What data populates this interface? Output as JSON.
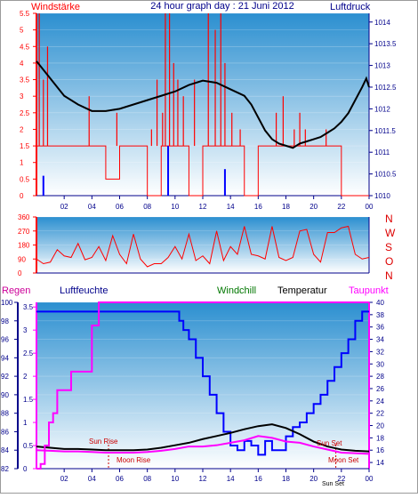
{
  "colors": {
    "red": "#ff0000",
    "navy": "#00008b",
    "blue": "#0000ff",
    "magenta": "#ff00ff",
    "black": "#000000",
    "green": "#007700",
    "dirLetters": "#dd0000",
    "regen": "#cc0099",
    "bgTop": "#2b8fd0",
    "bgBottom": "#ffffff"
  },
  "chart_data": [
    {
      "type": "line",
      "panel": "wind_pressure",
      "title": "24 hour graph day : 21 Juni 2012",
      "left_label": "Windstärke",
      "right_label": "Luftdruck",
      "x_ticks": [
        "02",
        "04",
        "06",
        "08",
        "10",
        "12",
        "14",
        "16",
        "18",
        "20",
        "22",
        "00"
      ],
      "y_left_ticks": [
        "0",
        "0.5",
        "1",
        "1.5",
        "2",
        "2.5",
        "3",
        "3.5",
        "4",
        "4.5",
        "5",
        "5.5"
      ],
      "y_left_range": [
        0,
        5.5
      ],
      "y_right_ticks": [
        "1010",
        "1010.5",
        "1011",
        "1011.5",
        "1012",
        "1012.5",
        "1013",
        "1013.5",
        "1014"
      ],
      "y_right_range": [
        1010,
        1014.2
      ],
      "series": [
        {
          "key": "pressure",
          "color": "black",
          "x": [
            0,
            0.5,
            1,
            1.5,
            2,
            3,
            4,
            4.5,
            5,
            6,
            7,
            8,
            9,
            10,
            11,
            12,
            13,
            14,
            15,
            15.5,
            16,
            16.5,
            17,
            17.5,
            18,
            18.5,
            19,
            19.5,
            20,
            20.5,
            21,
            21.5,
            22,
            22.5,
            23,
            23.5,
            23.8,
            24
          ],
          "y": [
            1013.1,
            1012.9,
            1012.7,
            1012.5,
            1012.3,
            1012.1,
            1011.95,
            1011.95,
            1011.95,
            1012.0,
            1012.1,
            1012.2,
            1012.3,
            1012.4,
            1012.55,
            1012.65,
            1012.6,
            1012.45,
            1012.3,
            1012.1,
            1011.8,
            1011.5,
            1011.3,
            1011.2,
            1011.15,
            1011.1,
            1011.2,
            1011.25,
            1011.3,
            1011.35,
            1011.45,
            1011.55,
            1011.7,
            1011.9,
            1012.2,
            1012.5,
            1012.7,
            1012.5
          ]
        },
        {
          "key": "wind_avg",
          "color": "red",
          "x": [
            0,
            2,
            3,
            4,
            5,
            6,
            7,
            8,
            9,
            9.5,
            10,
            11,
            12,
            13,
            14,
            15,
            16,
            17,
            18,
            19,
            20,
            21,
            22,
            23,
            24
          ],
          "y": [
            1.5,
            1.5,
            1.5,
            1.5,
            0.5,
            1.5,
            1.5,
            0,
            1.5,
            1.5,
            1.5,
            0,
            1.5,
            1.5,
            1.5,
            0,
            1.5,
            1.5,
            1.5,
            1.5,
            1.5,
            1.5,
            0,
            0,
            0
          ]
        },
        {
          "key": "wind_gust_spikes",
          "color": "red",
          "x": [
            0.2,
            0.5,
            0.8,
            3.3,
            3.8,
            5.3,
            5.8,
            6.9,
            7.6,
            8.3,
            8.7,
            9.1,
            9.3,
            9.6,
            9.9,
            10.2,
            10.6,
            11.4,
            12.4,
            12.9,
            13.3,
            13.6,
            14.1,
            14.7,
            15.4,
            16.2,
            17.3,
            17.8,
            18.2,
            18.6,
            19.0,
            19.4,
            19.8,
            20.3,
            20.9,
            21.6
          ],
          "y": [
            5.5,
            3.5,
            4.5,
            1.5,
            3.0,
            1.5,
            2.5,
            1.5,
            1.5,
            2.0,
            3.5,
            2.5,
            5.5,
            5.5,
            4.0,
            3.5,
            3.0,
            3.5,
            5.5,
            5.0,
            5.5,
            4.0,
            2.5,
            2.0,
            1.5,
            1.5,
            2.5,
            3.0,
            1.5,
            2.0,
            2.5,
            2.0,
            1.5,
            1.5,
            2.0,
            1.5
          ]
        },
        {
          "key": "wind_blue",
          "color": "blue",
          "x": [
            0.5,
            9.5,
            13.6
          ],
          "y": [
            0.6,
            1.5,
            0.8
          ]
        }
      ]
    },
    {
      "type": "line",
      "panel": "wind_direction",
      "y_ticks": [
        "0",
        "90",
        "180",
        "270",
        "360"
      ],
      "y_range": [
        0,
        360
      ],
      "direction_labels": [
        "N",
        "W",
        "S",
        "O",
        "N"
      ],
      "series": [
        {
          "key": "direction",
          "color": "red",
          "x": [
            0,
            0.5,
            1,
            1.5,
            2,
            2.5,
            3,
            3.5,
            4,
            4.5,
            5,
            5.5,
            6,
            6.5,
            7,
            7.5,
            8,
            8.5,
            9,
            9.5,
            10,
            10.5,
            11,
            11.5,
            12,
            12.5,
            13,
            13.5,
            14,
            14.5,
            15,
            15.5,
            16,
            16.5,
            17,
            17.5,
            18,
            18.5,
            19,
            19.5,
            20,
            20.5,
            21,
            21.5,
            22,
            22.5,
            23,
            23.5,
            24
          ],
          "y": [
            90,
            60,
            70,
            150,
            110,
            100,
            190,
            85,
            100,
            170,
            80,
            240,
            120,
            60,
            250,
            90,
            40,
            60,
            60,
            100,
            170,
            90,
            250,
            80,
            110,
            60,
            270,
            80,
            170,
            120,
            300,
            120,
            110,
            90,
            300,
            100,
            80,
            100,
            270,
            280,
            120,
            70,
            260,
            260,
            290,
            300,
            120,
            90,
            100
          ]
        }
      ]
    },
    {
      "type": "line",
      "panel": "humidity_temperature",
      "labels": {
        "regen": "Regen",
        "luftfeuchte": "Luftfeuchte",
        "windchill": "Windchill",
        "temperatur": "Temperatur",
        "taupunkt": "Taupunkt"
      },
      "annotations": {
        "sun_rise": "Sun Rise",
        "moon_rise": "Moon Rise",
        "sun_set": "Sun Set",
        "moon_set": "Moon Set",
        "sun_set_axis": "Sun Set"
      },
      "y_left_ticks": [
        "82",
        "84",
        "86",
        "88",
        "90",
        "92",
        "94",
        "96",
        "98",
        "100"
      ],
      "y_left_range": [
        82,
        100
      ],
      "y_rain_ticks": [
        "0",
        "0.5",
        "1",
        "1.5",
        "2",
        "2.5",
        "3",
        "3.5"
      ],
      "y_rain_range": [
        0,
        3.6
      ],
      "y_right_ticks": [
        "14",
        "16",
        "18",
        "20",
        "22",
        "24",
        "26",
        "28",
        "30",
        "32",
        "34",
        "36",
        "38",
        "40"
      ],
      "y_right_range": [
        13,
        40
      ],
      "series": [
        {
          "key": "rain",
          "color": "magenta",
          "x": [
            0,
            0.3,
            0.6,
            0.9,
            1.2,
            1.5,
            2,
            2.5,
            3,
            3.5,
            4,
            4.5,
            5,
            6,
            8,
            10,
            12,
            14,
            16,
            18,
            20,
            22,
            24
          ],
          "y": [
            0,
            0.1,
            0.5,
            1.0,
            1.2,
            1.7,
            1.7,
            2.1,
            2.1,
            2.1,
            3.1,
            3.6,
            3.6,
            3.6,
            3.6,
            3.6,
            3.6,
            3.6,
            3.6,
            3.6,
            3.6,
            3.6,
            3.6
          ]
        },
        {
          "key": "humidity",
          "color": "blue",
          "x": [
            0,
            1,
            2,
            3,
            4,
            5,
            6,
            7,
            8,
            9,
            10,
            10.3,
            10.6,
            11,
            11.5,
            12,
            12.5,
            13,
            13.5,
            14,
            14.5,
            15,
            15.5,
            16,
            16.5,
            17,
            17.5,
            18,
            18.5,
            19,
            19.5,
            20,
            20.5,
            21,
            21.5,
            22,
            22.5,
            23,
            23.5,
            24
          ],
          "y": [
            99,
            99,
            99,
            99,
            99,
            99,
            99,
            99,
            99,
            99,
            99,
            98,
            97,
            96,
            94,
            92,
            90,
            88,
            86,
            84.5,
            84,
            85,
            84.5,
            83.5,
            85,
            84,
            84,
            85.5,
            86.5,
            87,
            88,
            89,
            90,
            91.5,
            93,
            94.5,
            96,
            98,
            99,
            99
          ]
        },
        {
          "key": "temperature",
          "color": "black",
          "x": [
            0,
            1,
            2,
            3,
            4,
            5,
            6,
            7,
            8,
            9,
            10,
            11,
            12,
            13,
            14,
            15,
            16,
            17,
            18,
            19,
            20,
            21,
            22,
            23,
            24
          ],
          "y": [
            16.6,
            16.4,
            16.2,
            16.2,
            16.1,
            16.0,
            16.0,
            16.0,
            16.1,
            16.4,
            16.8,
            17.2,
            17.8,
            18.3,
            18.8,
            19.4,
            19.9,
            20.2,
            19.6,
            18.6,
            17.4,
            16.6,
            16.1,
            15.9,
            15.8
          ]
        },
        {
          "key": "dewpoint",
          "color": "magenta",
          "x": [
            0,
            1,
            2,
            3,
            4,
            5,
            6,
            7,
            8,
            9,
            10,
            11,
            12,
            13,
            14,
            15,
            16,
            17,
            18,
            19,
            20,
            21,
            22,
            23,
            24
          ],
          "y": [
            16.0,
            15.9,
            15.8,
            15.8,
            15.7,
            15.6,
            15.6,
            15.6,
            15.7,
            15.9,
            16.2,
            16.6,
            16.6,
            16.8,
            17.2,
            17.6,
            18.3,
            18.0,
            17.4,
            17.2,
            16.6,
            16.1,
            15.6,
            15.5,
            15.4
          ]
        }
      ]
    }
  ]
}
